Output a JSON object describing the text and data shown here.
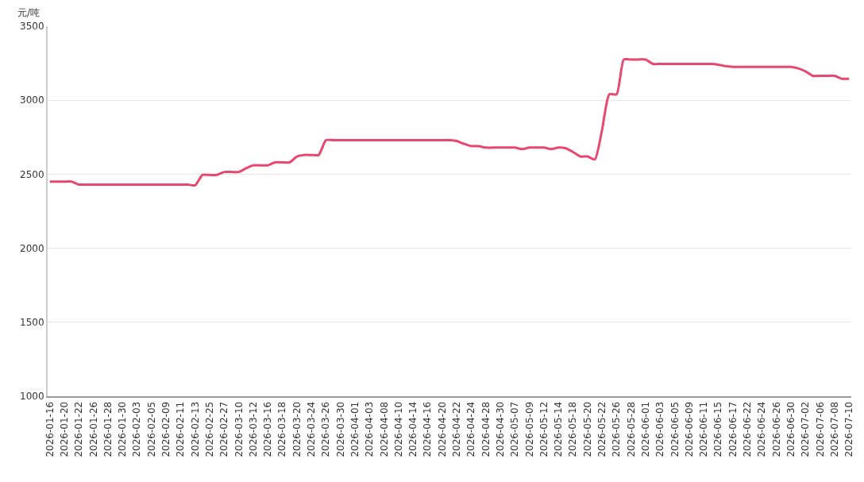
{
  "chart_data": {
    "type": "line",
    "ylabel": "元/吨",
    "categories": [
      "2026-01-16",
      null,
      "2026-01-20",
      null,
      "2026-01-22",
      null,
      "2026-01-26",
      null,
      "2026-01-28",
      null,
      "2026-01-30",
      null,
      "2026-02-03",
      null,
      "2026-02-05",
      null,
      "2026-02-09",
      null,
      "2026-02-11",
      null,
      "2026-02-13",
      null,
      "2026-02-25",
      null,
      "2026-02-27",
      null,
      "2026-03-10",
      null,
      "2026-03-12",
      null,
      "2026-03-16",
      null,
      "2026-03-18",
      null,
      "2026-03-20",
      null,
      "2026-03-24",
      null,
      "2026-03-26",
      null,
      "2026-03-30",
      null,
      "2026-04-01",
      null,
      "2026-04-03",
      null,
      "2026-04-08",
      null,
      "2026-04-10",
      null,
      "2026-04-14",
      null,
      "2026-04-16",
      null,
      "2026-04-20",
      null,
      "2026-04-22",
      null,
      "2026-04-24",
      null,
      "2026-04-28",
      null,
      "2026-04-30",
      null,
      "2026-05-07",
      null,
      "2026-05-09",
      null,
      "2026-05-12",
      null,
      "2026-05-14",
      null,
      "2026-05-18",
      null,
      "2026-05-20",
      null,
      "2026-05-22",
      null,
      "2026-05-26",
      null,
      "2026-05-28",
      null,
      "2026-06-01",
      null,
      "2026-06-03",
      null,
      "2026-06-05",
      null,
      "2026-06-09",
      null,
      "2026-06-11",
      null,
      "2026-06-15",
      null,
      "2026-06-17",
      null,
      "2026-06-22",
      null,
      "2026-06-24",
      null,
      "2026-06-26",
      null,
      "2026-06-30",
      null,
      "2026-07-02",
      null,
      "2026-07-06",
      null,
      "2026-07-08",
      null,
      "2026-07-10"
    ],
    "series": [
      {
        "color": "#e8476f",
        "values": [
          2450,
          2450,
          2450,
          2450,
          2430,
          2430,
          2430,
          2430,
          2430,
          2430,
          2430,
          2430,
          2430,
          2430,
          2430,
          2430,
          2430,
          2430,
          2430,
          2430,
          2425,
          2495,
          2495,
          2495,
          2515,
          2515,
          2515,
          2540,
          2560,
          2560,
          2560,
          2580,
          2580,
          2580,
          2620,
          2630,
          2630,
          2630,
          2730,
          2730,
          2730,
          2730,
          2730,
          2730,
          2730,
          2730,
          2730,
          2730,
          2730,
          2730,
          2730,
          2730,
          2730,
          2730,
          2730,
          2730,
          2725,
          2705,
          2690,
          2690,
          2680,
          2680,
          2680,
          2680,
          2680,
          2670,
          2680,
          2680,
          2680,
          2670,
          2680,
          2675,
          2650,
          2620,
          2620,
          2600,
          2800,
          3040,
          3040,
          3275,
          3275,
          3275,
          3275,
          3245,
          3245,
          3245,
          3245,
          3245,
          3245,
          3245,
          3245,
          3245,
          3240,
          3230,
          3225,
          3225,
          3225,
          3225,
          3225,
          3225,
          3225,
          3225,
          3225,
          3215,
          3195,
          3165,
          3165,
          3165,
          3165,
          3145,
          3145
        ]
      }
    ],
    "ylim": [
      1000,
      3500
    ],
    "yticks": [
      1000,
      1500,
      2000,
      2500,
      3000,
      3500
    ],
    "grid": "y",
    "marker": "none",
    "line_style": "solid"
  }
}
